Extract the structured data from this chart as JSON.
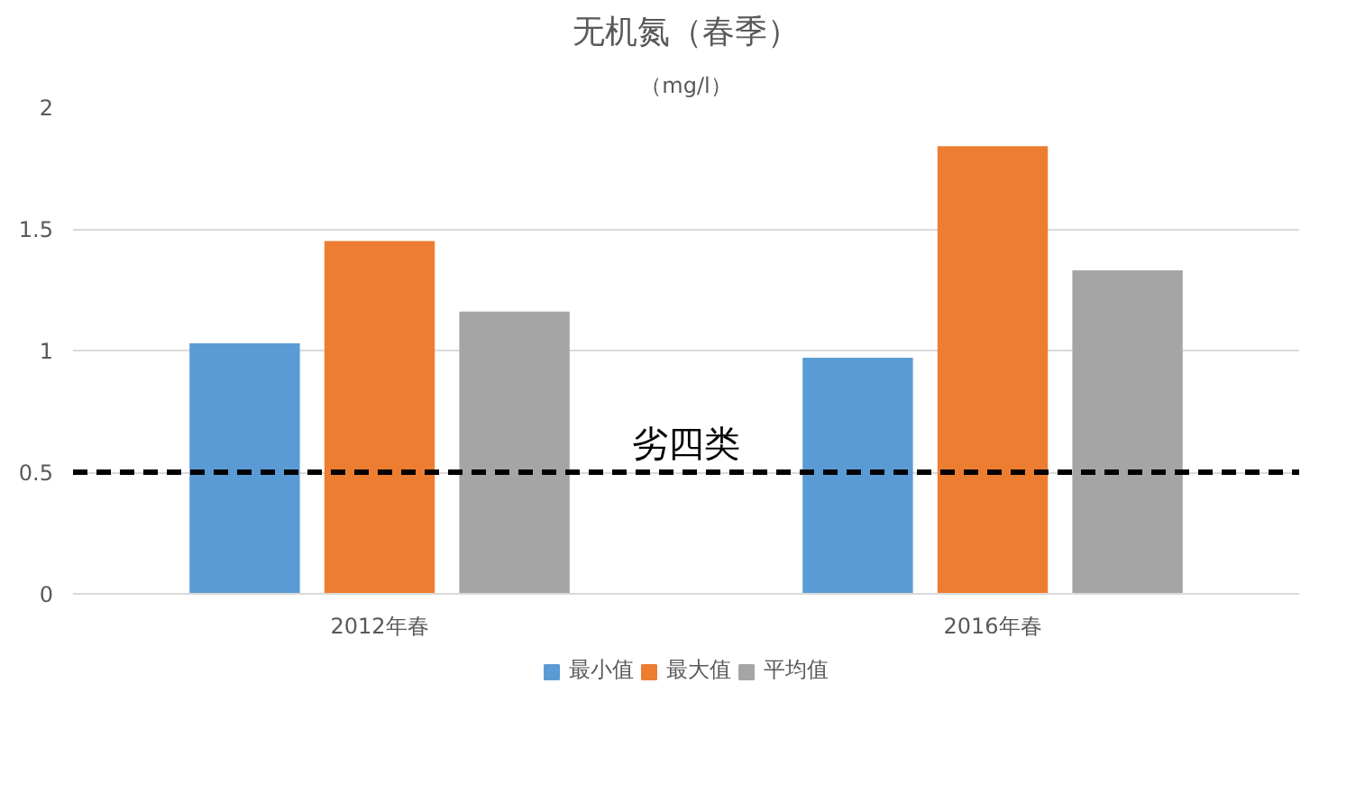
{
  "chart_data": {
    "type": "bar",
    "title": "无机氮（春季）",
    "subtitle": "（mg/l）",
    "categories": [
      "2012年春",
      "2016年春"
    ],
    "series": [
      {
        "name": "最小值",
        "color": "#5b9bd5",
        "values": [
          1.03,
          0.97
        ]
      },
      {
        "name": "最大值",
        "color": "#ed7d31",
        "values": [
          1.45,
          1.84
        ]
      },
      {
        "name": "平均值",
        "color": "#a5a5a5",
        "values": [
          1.16,
          1.33
        ]
      }
    ],
    "ylim": [
      0,
      2
    ],
    "yticks": [
      0,
      0.5,
      1,
      1.5,
      2
    ],
    "grid": "y",
    "legend": "bottom",
    "ref_lines": [
      {
        "axis": "y",
        "value": 0.5,
        "label": "劣四类",
        "color": "#000000",
        "line_style": "dashed"
      }
    ]
  }
}
